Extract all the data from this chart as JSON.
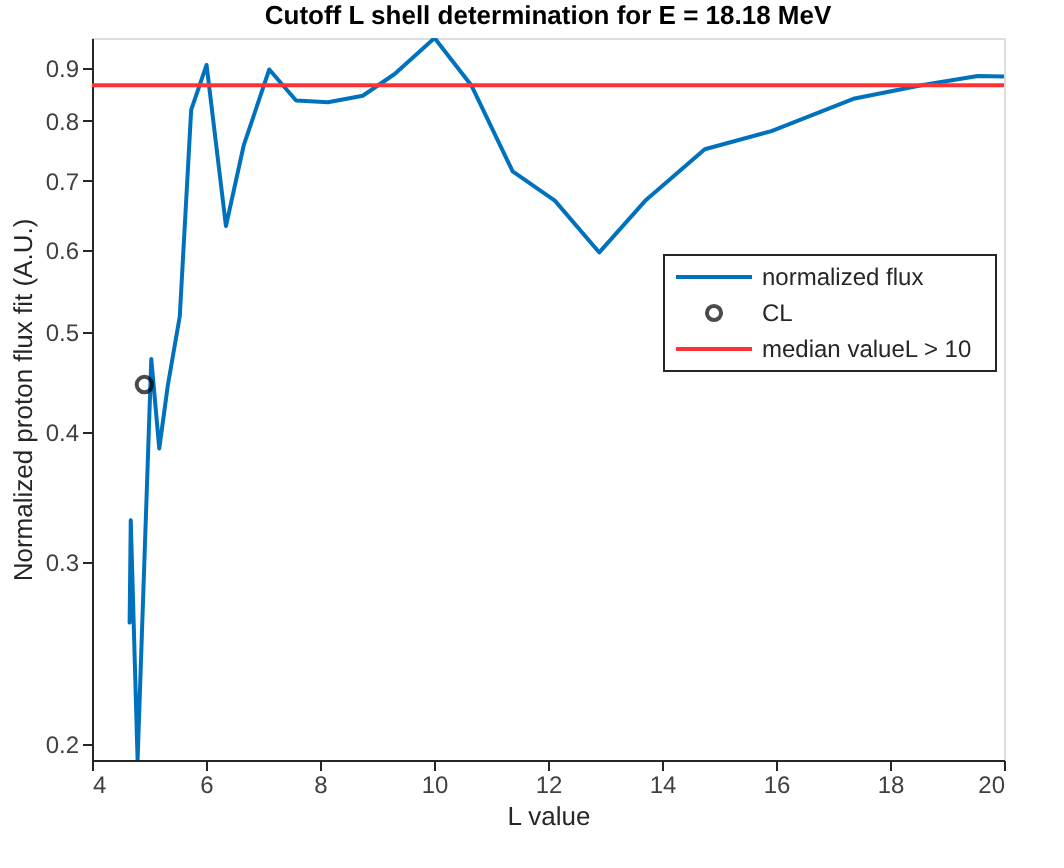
{
  "chart_data": {
    "type": "line",
    "title": "Cutoff L shell determination for E = 18.18 MeV",
    "xlabel": "L value",
    "ylabel": "Normalized proton flux fit (A.U.)",
    "xlim": [
      4,
      20
    ],
    "xticks": [
      4,
      6,
      8,
      10,
      12,
      14,
      16,
      18,
      20
    ],
    "ylim": [
      0.193,
      0.962
    ],
    "yticks": [
      0.2,
      0.3,
      0.4,
      0.5,
      0.6,
      0.7,
      0.8,
      0.9
    ],
    "log": "y",
    "grid": false,
    "legend": "right",
    "series": [
      {
        "name": "normalized flux",
        "color": "#0072bd",
        "line_style": "solid",
        "x": [
          4.66,
          4.68,
          4.8,
          5.04,
          5.18,
          5.33,
          5.54,
          5.74,
          6.01,
          6.35,
          6.66,
          7.11,
          7.58,
          8.14,
          8.75,
          9.31,
          10.01,
          10.66,
          11.38,
          12.12,
          12.9,
          13.72,
          14.75,
          15.92,
          17.38,
          18.55,
          19.54,
          20
        ],
        "values": [
          0.262,
          0.329,
          0.193,
          0.471,
          0.386,
          0.444,
          0.518,
          0.82,
          0.906,
          0.633,
          0.757,
          0.897,
          0.837,
          0.834,
          0.846,
          0.888,
          0.962,
          0.865,
          0.715,
          0.67,
          0.597,
          0.671,
          0.751,
          0.782,
          0.841,
          0.866,
          0.884,
          0.883
        ]
      },
      {
        "name": "CL",
        "type": "scatter",
        "marker": "circle",
        "color": "#000000",
        "x": [
          4.92
        ],
        "values": [
          0.445
        ]
      }
    ],
    "ref_lines": [
      {
        "axis": "y",
        "value": 0.866,
        "label": "median valueL > 10",
        "color": "#ff3333"
      }
    ]
  }
}
